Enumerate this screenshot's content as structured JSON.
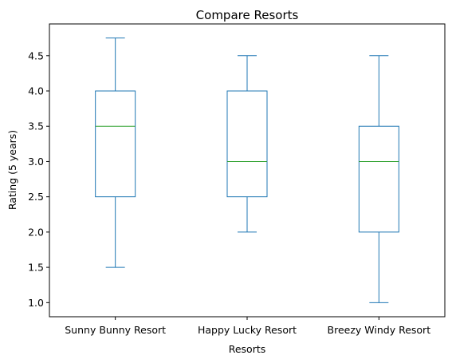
{
  "chart_data": {
    "type": "box",
    "title": "Compare Resorts",
    "xlabel": "Resorts",
    "ylabel": "Rating (5 years)",
    "ylim": [
      0.8,
      4.95
    ],
    "yticks": [
      "1.0",
      "1.5",
      "2.0",
      "2.5",
      "3.0",
      "3.5",
      "4.0",
      "4.5"
    ],
    "grid": false,
    "colors": {
      "box": "#1f77b4",
      "median": "#2ca02c",
      "axis": "#000000"
    },
    "categories": [
      "Sunny Bunny Resort",
      "Happy Lucky Resort",
      "Breezy Windy Resort"
    ],
    "boxes": [
      {
        "min": 1.5,
        "q1": 2.5,
        "median": 3.5,
        "q3": 4.0,
        "max": 4.75
      },
      {
        "min": 2.0,
        "q1": 2.5,
        "median": 3.0,
        "q3": 4.0,
        "max": 4.5
      },
      {
        "min": 1.0,
        "q1": 2.0,
        "median": 3.0,
        "q3": 3.5,
        "max": 4.5
      }
    ]
  }
}
